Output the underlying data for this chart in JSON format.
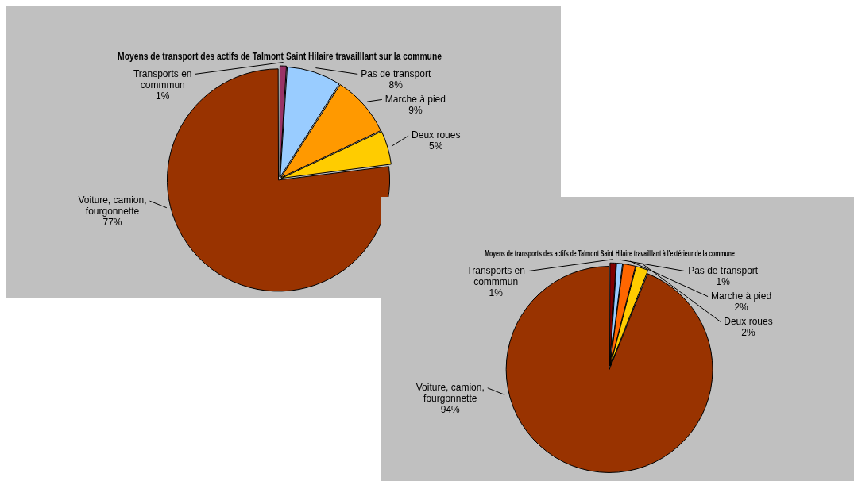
{
  "chart_data": [
    {
      "type": "pie",
      "title": "Moyens de transport des actifs de Talmont Saint Hilaire travailllant sur la commune",
      "categories": [
        "Transports en commmun",
        "Pas de transport",
        "Marche à pied",
        "Deux roues",
        "Voiture, camion, fourgonnette"
      ],
      "values": [
        1,
        8,
        9,
        5,
        77
      ],
      "colors": [
        "#993366",
        "#99ccff",
        "#ff9900",
        "#ffcc00",
        "#993300"
      ],
      "value_labels": [
        "1%",
        "8%",
        "9%",
        "5%",
        "77%"
      ]
    },
    {
      "type": "pie",
      "title": "Moyens de transports des actifs de Talmont Saint Hilaire travailllant à l'extérieur de la commune",
      "categories": [
        "Transports en commmun",
        "Pas de transport",
        "Marche à pied",
        "Deux roues",
        "Voiture, camion, fourgonnette"
      ],
      "values": [
        1,
        1,
        2,
        2,
        94
      ],
      "colors": [
        "#800000",
        "#99ccff",
        "#ff6600",
        "#ffcc00",
        "#993300"
      ],
      "value_labels": [
        "1%",
        "1%",
        "2%",
        "2%",
        "94%"
      ]
    }
  ]
}
